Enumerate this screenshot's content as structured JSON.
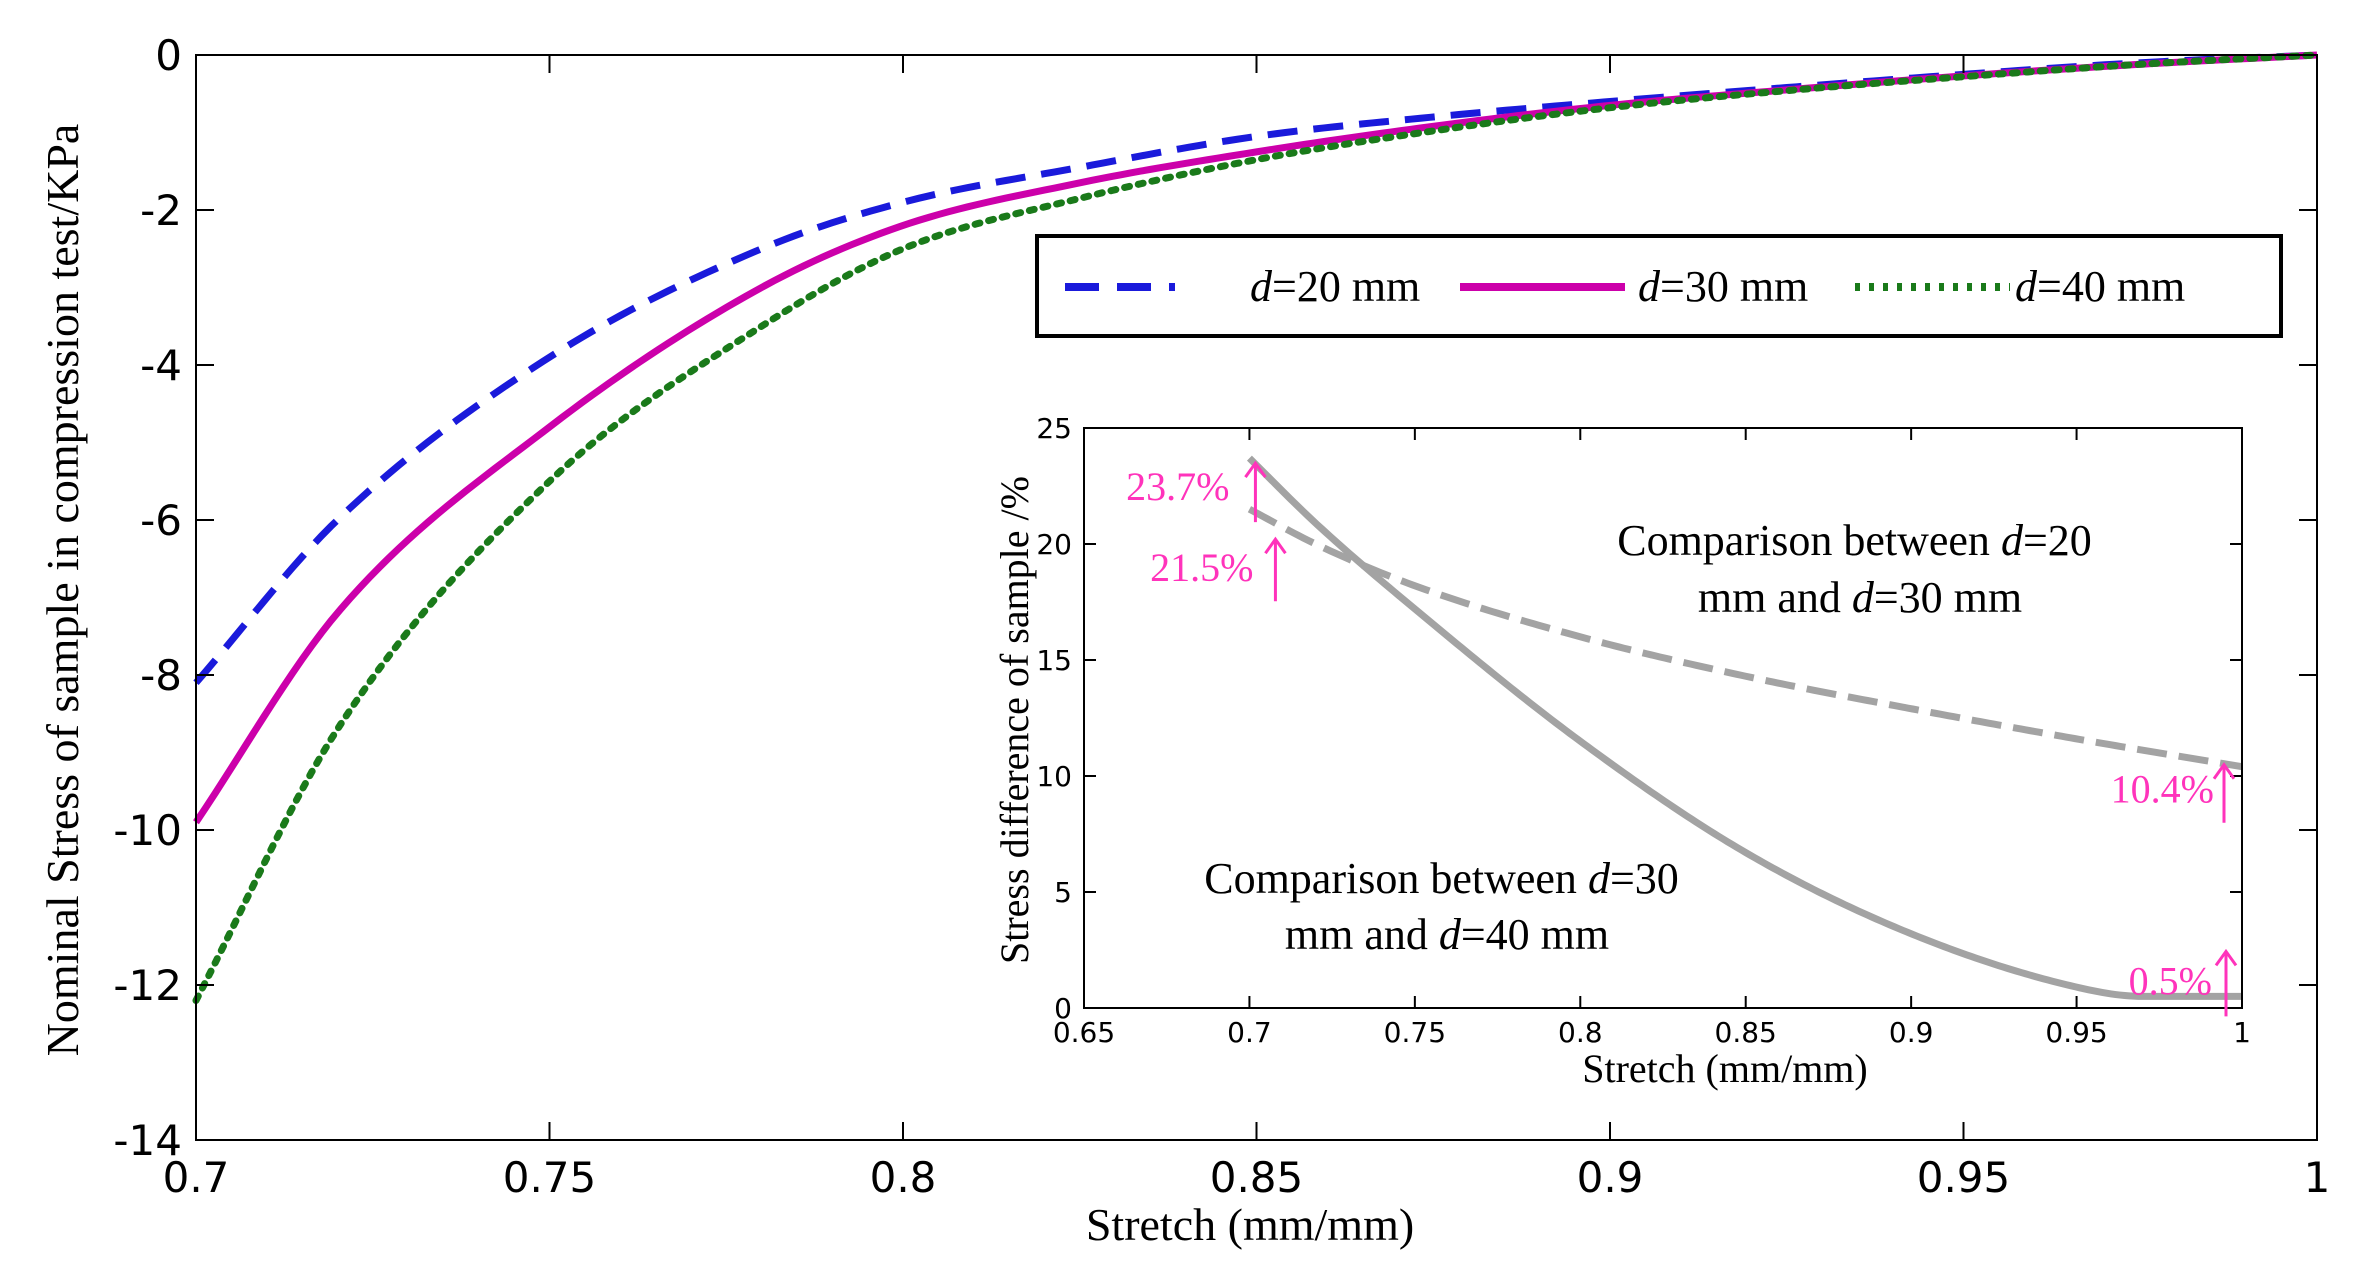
{
  "chart_data": [
    {
      "id": "main",
      "type": "line",
      "title": "",
      "xlabel": "Stretch (mm/mm)",
      "ylabel": "Nominal Stress of sample in compression test/KPa",
      "xlim": [
        0.7,
        1.0
      ],
      "ylim": [
        -14,
        0
      ],
      "xticks": [
        0.7,
        0.75,
        0.8,
        0.85,
        0.9,
        0.95,
        1.0
      ],
      "xtick_labels": [
        "0.7",
        "0.75",
        "0.8",
        "0.85",
        "0.9",
        "0.95",
        "1"
      ],
      "yticks": [
        0,
        -2,
        -4,
        -6,
        -8,
        -10,
        -12,
        -14
      ],
      "ytick_labels": [
        "0",
        "-2",
        "-4",
        "-6",
        "-8",
        "-10",
        "-12",
        "-14"
      ],
      "x": [
        0.7,
        0.72,
        0.75,
        0.78,
        0.8,
        0.825,
        0.85,
        0.875,
        0.9,
        0.925,
        0.95,
        0.975,
        1.0
      ],
      "series": [
        {
          "name": "d=20 mm",
          "italic": "d",
          "rest": "=20 mm",
          "color": "#1a1adb",
          "style": "dashed",
          "values": [
            -8.1,
            -6.0,
            -3.9,
            -2.5,
            -1.9,
            -1.45,
            -1.05,
            -0.8,
            -0.6,
            -0.42,
            -0.25,
            -0.1,
            0.0
          ]
        },
        {
          "name": "d=30 mm",
          "italic": "d",
          "rest": "=30 mm",
          "color": "#cc00aa",
          "style": "solid",
          "values": [
            -9.9,
            -7.2,
            -4.8,
            -3.0,
            -2.2,
            -1.65,
            -1.25,
            -0.92,
            -0.65,
            -0.45,
            -0.27,
            -0.12,
            0.0
          ]
        },
        {
          "name": "d=40 mm",
          "italic": "d",
          "rest": "=40 mm",
          "color": "#1a7a1a",
          "style": "dotted",
          "values": [
            -12.2,
            -8.7,
            -5.5,
            -3.5,
            -2.5,
            -1.85,
            -1.35,
            -0.98,
            -0.68,
            -0.46,
            -0.28,
            -0.12,
            0.0
          ]
        }
      ],
      "legend": {
        "position": "top-right",
        "boxed": true
      }
    },
    {
      "id": "inset",
      "type": "line",
      "title": "",
      "xlabel": "Stretch (mm/mm)",
      "ylabel": "Stress difference of sample /%",
      "xlim": [
        0.65,
        1.0
      ],
      "ylim": [
        0,
        25
      ],
      "xticks": [
        0.65,
        0.7,
        0.75,
        0.8,
        0.85,
        0.9,
        0.95,
        1.0
      ],
      "xtick_labels": [
        "0.65",
        "0.7",
        "0.75",
        "0.8",
        "0.85",
        "0.9",
        "0.95",
        "1"
      ],
      "yticks": [
        0,
        5,
        10,
        15,
        20,
        25
      ],
      "ytick_labels": [
        "0",
        "5",
        "10",
        "15",
        "20",
        "25"
      ],
      "series": [
        {
          "name": "Comparison between d=20 mm and d=30 mm",
          "color": "#a3a3a3",
          "style": "dashed",
          "x": [
            0.7,
            0.72,
            0.75,
            0.8,
            0.85,
            0.9,
            0.95,
            1.0
          ],
          "values": [
            21.5,
            20.0,
            18.2,
            16.0,
            14.3,
            12.9,
            11.6,
            10.4
          ]
        },
        {
          "name": "Comparison between d=30 mm and d=40 mm",
          "color": "#a3a3a3",
          "style": "solid",
          "x": [
            0.7,
            0.72,
            0.75,
            0.8,
            0.85,
            0.9,
            0.95,
            0.97,
            1.0
          ],
          "values": [
            23.7,
            20.9,
            17.2,
            11.5,
            6.7,
            3.2,
            0.9,
            0.5,
            0.5
          ]
        }
      ],
      "notes": [
        {
          "line1_pre": "Comparison between ",
          "line1_italic": "d",
          "line1_post": "=20",
          "line2_pre": "mm and ",
          "line2_italic": "d",
          "line2_post": "=30 mm"
        },
        {
          "line1_pre": "Comparison between ",
          "line1_italic": "d",
          "line1_post": "=30",
          "line2_pre": "mm and ",
          "line2_italic": "d",
          "line2_post": "=40 mm"
        }
      ],
      "annotations": [
        {
          "text": "23.7%",
          "x": 0.7,
          "y": 23.7,
          "color": "#ff33bb"
        },
        {
          "text": "21.5%",
          "x": 0.7,
          "y": 21.5,
          "color": "#ff33bb"
        },
        {
          "text": "10.4%",
          "x": 1.0,
          "y": 10.4,
          "color": "#ff33bb"
        },
        {
          "text": "0.5%",
          "x": 1.0,
          "y": 0.5,
          "color": "#ff33bb"
        }
      ]
    }
  ]
}
